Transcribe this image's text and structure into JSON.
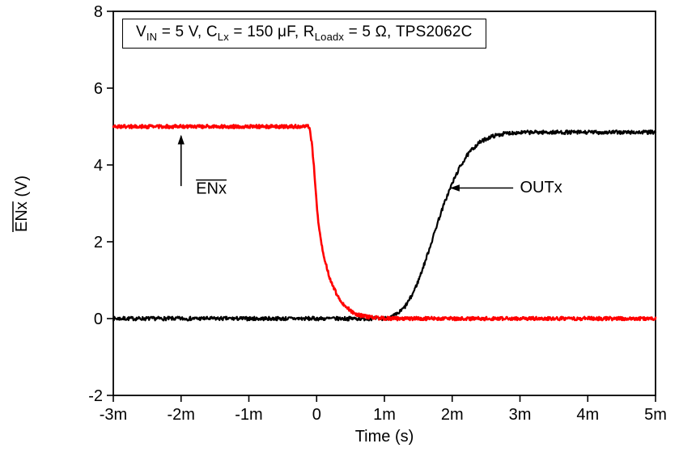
{
  "chart_data": {
    "type": "line",
    "title": "VIN = 5 V, CLx = 150 μF, RLoadx = 5 Ω, TPS2062C",
    "title_parts": [
      {
        "t": "V"
      },
      {
        "s": "IN"
      },
      {
        "t": " = 5 V, C"
      },
      {
        "s": "Lx"
      },
      {
        "t": " = 150 μF, R"
      },
      {
        "s": "Loadx"
      },
      {
        "t": " = 5 Ω, TPS2062C"
      }
    ],
    "xlabel": "Time (s)",
    "ylabel_main": "ENx",
    "ylabel_rest": " (V)",
    "ylabel_main_overlined": true,
    "xlim_ms": [
      -3,
      5
    ],
    "ylim": [
      -2,
      8
    ],
    "x_ticks": [
      {
        "v": -3,
        "label": "-3m"
      },
      {
        "v": -2,
        "label": "-2m"
      },
      {
        "v": -1,
        "label": "-1m"
      },
      {
        "v": 0,
        "label": "0"
      },
      {
        "v": 1,
        "label": "1m"
      },
      {
        "v": 2,
        "label": "2m"
      },
      {
        "v": 3,
        "label": "3m"
      },
      {
        "v": 4,
        "label": "4m"
      },
      {
        "v": 5,
        "label": "5m"
      }
    ],
    "y_ticks": [
      {
        "v": -2,
        "label": "-2"
      },
      {
        "v": 0,
        "label": "0"
      },
      {
        "v": 2,
        "label": "2"
      },
      {
        "v": 4,
        "label": "4"
      },
      {
        "v": 6,
        "label": "6"
      },
      {
        "v": 8,
        "label": "8"
      }
    ],
    "grid": false,
    "legend": "none (inline annotations with arrows)",
    "series": [
      {
        "name": "OUTx",
        "color": "#000000",
        "width": 2.2,
        "noise": 0.05,
        "points_ms_v": [
          [
            -3,
            0
          ],
          [
            1.0,
            0
          ],
          [
            1.1,
            0.04
          ],
          [
            1.2,
            0.13
          ],
          [
            1.3,
            0.3
          ],
          [
            1.4,
            0.58
          ],
          [
            1.5,
            0.98
          ],
          [
            1.6,
            1.48
          ],
          [
            1.7,
            2.02
          ],
          [
            1.8,
            2.58
          ],
          [
            1.9,
            3.08
          ],
          [
            2.0,
            3.52
          ],
          [
            2.1,
            3.9
          ],
          [
            2.2,
            4.2
          ],
          [
            2.3,
            4.42
          ],
          [
            2.4,
            4.58
          ],
          [
            2.5,
            4.68
          ],
          [
            2.6,
            4.75
          ],
          [
            2.75,
            4.81
          ],
          [
            2.9,
            4.84
          ],
          [
            3.2,
            4.85
          ],
          [
            5,
            4.85
          ]
        ]
      },
      {
        "name": "ENx",
        "color": "#ff0000",
        "width": 2.6,
        "noise": 0.045,
        "points_ms_v": [
          [
            -3,
            5
          ],
          [
            -0.13,
            5
          ],
          [
            -0.1,
            4.95
          ],
          [
            -0.07,
            4.55
          ],
          [
            -0.04,
            3.95
          ],
          [
            -0.01,
            3.2
          ],
          [
            0.02,
            2.6
          ],
          [
            0.06,
            2.05
          ],
          [
            0.1,
            1.7
          ],
          [
            0.15,
            1.32
          ],
          [
            0.2,
            1.02
          ],
          [
            0.25,
            0.8
          ],
          [
            0.3,
            0.62
          ],
          [
            0.35,
            0.48
          ],
          [
            0.4,
            0.37
          ],
          [
            0.45,
            0.28
          ],
          [
            0.5,
            0.21
          ],
          [
            0.55,
            0.15
          ],
          [
            0.6,
            0.11
          ],
          [
            0.7,
            0.06
          ],
          [
            0.8,
            0.03
          ],
          [
            0.95,
            0.01
          ],
          [
            1.1,
            0
          ],
          [
            5,
            0
          ]
        ]
      }
    ],
    "annotations": [
      {
        "label": "ENx",
        "overline": true,
        "text_x_ms": -1.78,
        "text_y_v": 3.25,
        "arrow": {
          "x1_ms": -2.0,
          "y1_v": 3.45,
          "x2_ms": -2.0,
          "y2_v": 4.76
        }
      },
      {
        "label": "OUTx",
        "overline": false,
        "text_x_ms": 3.0,
        "text_y_v": 3.28,
        "arrow": {
          "x1_ms": 2.9,
          "y1_v": 3.4,
          "x2_ms": 1.98,
          "y2_v": 3.4
        }
      }
    ]
  }
}
